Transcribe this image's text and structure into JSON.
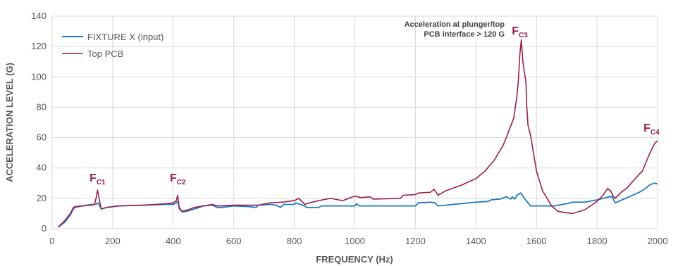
{
  "chart_data": {
    "type": "line",
    "xlabel": "FREQUENCY (Hz)",
    "ylabel": "ACCELERATION LEVEL (G)",
    "xlim": [
      0,
      2000
    ],
    "ylim": [
      0,
      140
    ],
    "xticks": [
      "0",
      "200",
      "400",
      "600",
      "800",
      "1000",
      "1200",
      "1400",
      "1600",
      "1800",
      "2000"
    ],
    "yticks": [
      "0",
      "20",
      "40",
      "60",
      "80",
      "100",
      "120",
      "140"
    ],
    "grid": true,
    "legend_position": "top-left",
    "annotation": [
      "Acceleration at plunger/top",
      "PCB interface > 120 G"
    ],
    "peak_labels": [
      {
        "main": "F",
        "sub": "C1",
        "x": 150,
        "y": 31
      },
      {
        "main": "F",
        "sub": "C2",
        "x": 415,
        "y": 31
      },
      {
        "main": "F",
        "sub": "C3",
        "x": 1545,
        "y": 128
      },
      {
        "main": "F",
        "sub": "C4",
        "x": 1980,
        "y": 64
      }
    ],
    "series": [
      {
        "name": "FIXTURE X (input)",
        "color": "#1f7bc1",
        "points": [
          [
            20,
            1
          ],
          [
            40,
            4
          ],
          [
            60,
            9
          ],
          [
            70,
            13
          ],
          [
            75,
            14
          ],
          [
            100,
            15
          ],
          [
            130,
            16
          ],
          [
            145,
            16
          ],
          [
            150,
            17
          ],
          [
            155,
            16
          ],
          [
            162,
            13
          ],
          [
            180,
            14
          ],
          [
            220,
            15
          ],
          [
            300,
            15.5
          ],
          [
            380,
            16
          ],
          [
            400,
            16
          ],
          [
            410,
            17
          ],
          [
            415,
            18
          ],
          [
            420,
            14
          ],
          [
            430,
            11
          ],
          [
            445,
            11.5
          ],
          [
            470,
            13
          ],
          [
            500,
            15
          ],
          [
            530,
            15.5
          ],
          [
            545,
            14
          ],
          [
            560,
            14
          ],
          [
            600,
            15
          ],
          [
            650,
            14.5
          ],
          [
            675,
            14
          ],
          [
            680,
            15.5
          ],
          [
            720,
            16
          ],
          [
            740,
            15.5
          ],
          [
            755,
            14
          ],
          [
            765,
            16
          ],
          [
            800,
            16
          ],
          [
            805,
            17
          ],
          [
            835,
            15
          ],
          [
            840,
            14
          ],
          [
            880,
            14
          ],
          [
            890,
            15
          ],
          [
            1000,
            15
          ],
          [
            1005,
            16.5
          ],
          [
            1015,
            15
          ],
          [
            1200,
            15
          ],
          [
            1210,
            17
          ],
          [
            1250,
            17.5
          ],
          [
            1265,
            17
          ],
          [
            1275,
            15
          ],
          [
            1300,
            15.5
          ],
          [
            1350,
            16.5
          ],
          [
            1400,
            17.5
          ],
          [
            1440,
            18
          ],
          [
            1450,
            19
          ],
          [
            1480,
            19.5
          ],
          [
            1500,
            21
          ],
          [
            1515,
            19.5
          ],
          [
            1520,
            21
          ],
          [
            1528,
            19.5
          ],
          [
            1535,
            22
          ],
          [
            1548,
            23.5
          ],
          [
            1560,
            20
          ],
          [
            1580,
            15
          ],
          [
            1660,
            15
          ],
          [
            1700,
            16.5
          ],
          [
            1720,
            17.5
          ],
          [
            1760,
            17.5
          ],
          [
            1800,
            19
          ],
          [
            1840,
            21
          ],
          [
            1850,
            21
          ],
          [
            1860,
            17
          ],
          [
            1900,
            20.5
          ],
          [
            1940,
            24
          ],
          [
            1960,
            26.5
          ],
          [
            1975,
            29
          ],
          [
            1990,
            30
          ],
          [
            2000,
            29.5
          ]
        ]
      },
      {
        "name": "Top PCB",
        "color": "#9b1c4e",
        "points": [
          [
            20,
            1
          ],
          [
            40,
            5
          ],
          [
            60,
            10
          ],
          [
            70,
            14
          ],
          [
            75,
            14.5
          ],
          [
            100,
            15
          ],
          [
            130,
            15.5
          ],
          [
            140,
            16
          ],
          [
            145,
            20
          ],
          [
            150,
            25.5
          ],
          [
            155,
            20
          ],
          [
            162,
            13
          ],
          [
            180,
            14
          ],
          [
            220,
            15
          ],
          [
            300,
            15.5
          ],
          [
            380,
            16.5
          ],
          [
            400,
            17
          ],
          [
            410,
            18.5
          ],
          [
            415,
            22
          ],
          [
            420,
            13
          ],
          [
            430,
            11.5
          ],
          [
            450,
            12.5
          ],
          [
            470,
            14
          ],
          [
            500,
            15
          ],
          [
            530,
            16
          ],
          [
            545,
            15
          ],
          [
            560,
            15
          ],
          [
            600,
            15.5
          ],
          [
            680,
            15.5
          ],
          [
            720,
            17
          ],
          [
            760,
            17.5
          ],
          [
            800,
            18.5
          ],
          [
            815,
            20
          ],
          [
            835,
            16
          ],
          [
            850,
            17
          ],
          [
            880,
            18.5
          ],
          [
            920,
            20
          ],
          [
            960,
            18.5
          ],
          [
            1000,
            21.5
          ],
          [
            1020,
            20.5
          ],
          [
            1050,
            21
          ],
          [
            1060,
            19.5
          ],
          [
            1150,
            20
          ],
          [
            1160,
            22
          ],
          [
            1200,
            22.5
          ],
          [
            1210,
            23.5
          ],
          [
            1250,
            24
          ],
          [
            1262,
            26
          ],
          [
            1275,
            22
          ],
          [
            1300,
            25
          ],
          [
            1350,
            28.5
          ],
          [
            1400,
            33
          ],
          [
            1430,
            38
          ],
          [
            1460,
            45
          ],
          [
            1490,
            55
          ],
          [
            1510,
            65
          ],
          [
            1525,
            73
          ],
          [
            1535,
            87
          ],
          [
            1540,
            97
          ],
          [
            1545,
            115
          ],
          [
            1550,
            124.5
          ],
          [
            1555,
            110
          ],
          [
            1560,
            103
          ],
          [
            1565,
            97
          ],
          [
            1568,
            80
          ],
          [
            1572,
            68
          ],
          [
            1580,
            62
          ],
          [
            1600,
            38
          ],
          [
            1620,
            25
          ],
          [
            1650,
            15
          ],
          [
            1670,
            11.5
          ],
          [
            1700,
            10.5
          ],
          [
            1720,
            10
          ],
          [
            1760,
            12.5
          ],
          [
            1800,
            18
          ],
          [
            1820,
            22
          ],
          [
            1835,
            26.5
          ],
          [
            1845,
            25
          ],
          [
            1853,
            21.5
          ],
          [
            1860,
            20
          ],
          [
            1880,
            24
          ],
          [
            1900,
            27
          ],
          [
            1940,
            36
          ],
          [
            1950,
            38
          ],
          [
            1975,
            50
          ],
          [
            1990,
            56
          ],
          [
            2000,
            58
          ]
        ]
      }
    ]
  }
}
